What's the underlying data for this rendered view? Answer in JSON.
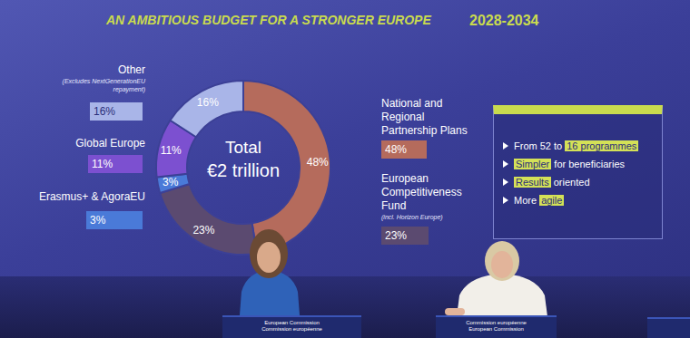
{
  "chart_data": {
    "type": "pie",
    "title": "AN AMBITIOUS BUDGET FOR A STRONGER EUROPE",
    "subtitle": "2028-2034",
    "categories": [
      "National and Regional Partnership Plans",
      "European Competitiveness Fund",
      "Erasmus+ & AgoraEU",
      "Global Europe",
      "Other"
    ],
    "values": [
      48,
      23,
      3,
      11,
      16
    ],
    "value_labels": [
      "48%",
      "23%",
      "3%",
      "11%",
      "16%"
    ],
    "colors": [
      "#b56b5c",
      "#5b4a70",
      "#4a7ad8",
      "#7c50d0",
      "#a9b5e8"
    ],
    "category_notes": [
      null,
      "(incl. Horizon Europe)",
      null,
      null,
      "(Excludes NextGenerationEU repayment)"
    ],
    "center_text": [
      "Total",
      "€2 trillion"
    ],
    "data_labels": true
  },
  "bullets": [
    [
      {
        "text": "From 52 to "
      },
      {
        "text": "16 programmes",
        "highlight": true
      }
    ],
    [
      {
        "text": "Simpler",
        "highlight": true
      },
      {
        "text": " for beneficiaries"
      }
    ],
    [
      {
        "text": "Results",
        "highlight": true
      },
      {
        "text": " oriented"
      }
    ],
    [
      {
        "text": "More "
      },
      {
        "text": "agile",
        "highlight": true
      }
    ]
  ],
  "podiums": [
    [
      "European Commission",
      "Commission européenne"
    ],
    [
      "Commission européenne",
      "European Commission"
    ]
  ]
}
